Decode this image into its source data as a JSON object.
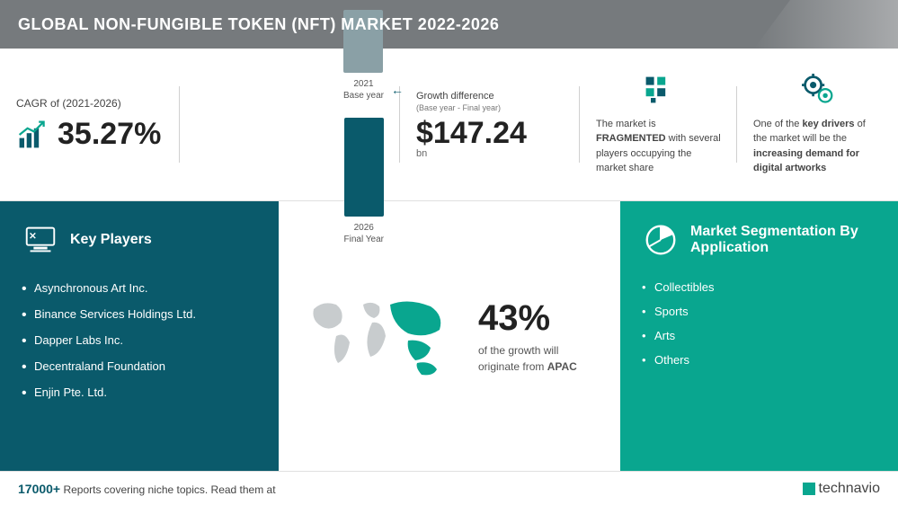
{
  "header": {
    "title": "GLOBAL NON-FUNGIBLE TOKEN (NFT) MARKET 2022-2026"
  },
  "cagr": {
    "label": "CAGR of (2021-2026)",
    "value": "35.27%",
    "icon_color": "#0a5a6b",
    "accent": "#09a68f"
  },
  "bars": {
    "items": [
      {
        "label_line1": "2021",
        "label_line2": "Base year",
        "height": 70,
        "color": "#8aa0a6"
      },
      {
        "label_line1": "2026",
        "label_line2": "Final Year",
        "height": 110,
        "color": "#0a5a6b"
      }
    ]
  },
  "growth": {
    "label": "Growth difference",
    "sublabel": "(Base year - Final year)",
    "value": "$147.24",
    "unit": "bn"
  },
  "fragment": {
    "text_prefix": "The market is ",
    "emphasis": "FRAGMENTED",
    "text_suffix": " with several players occupying the market share",
    "icon_color": "#0a5a6b",
    "accent": "#09a68f"
  },
  "driver": {
    "text_prefix": "One of the ",
    "emphasis1": "key drivers",
    "text_mid": " of the market will be the ",
    "emphasis2": "increasing demand for digital artworks",
    "icon_color": "#0a5a6b",
    "accent": "#09a68f"
  },
  "players": {
    "title": "Key Players",
    "items": [
      "Asynchronous Art Inc.",
      "Binance Services Holdings Ltd.",
      "Dapper Labs Inc.",
      "Decentraland Foundation",
      "Enjin Pte. Ltd."
    ],
    "bg": "#0a5a6b"
  },
  "map": {
    "percent": "43%",
    "text_prefix": "of the growth will originate from ",
    "region": "APAC",
    "land_color": "#c8ccce",
    "highlight_color": "#09a68f"
  },
  "segmentation": {
    "title": "Market Segmentation By Application",
    "items": [
      "Collectibles",
      "Sports",
      "Arts",
      "Others"
    ],
    "bg": "#09a68f"
  },
  "footer": {
    "count": "17000+",
    "text": " Reports covering niche topics. Read them at",
    "logo_text": "technavio",
    "logo_color": "#09a68f"
  }
}
